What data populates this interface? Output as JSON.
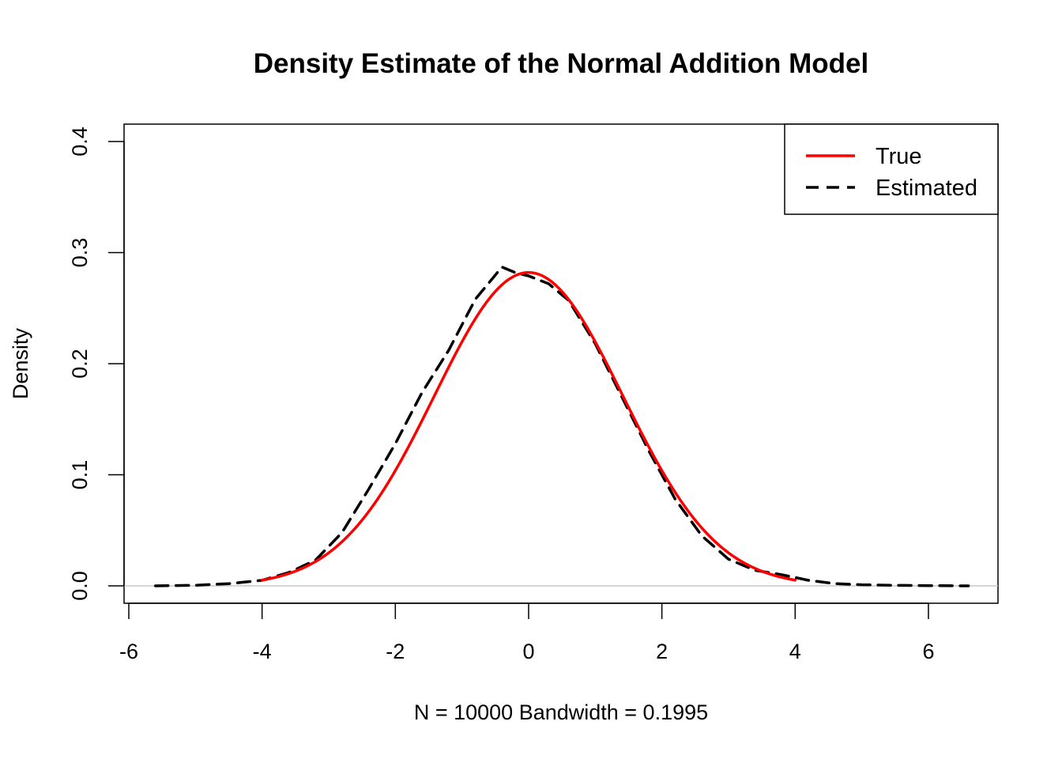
{
  "chart_data": {
    "type": "line",
    "title": "Density Estimate of the Normal Addition Model",
    "xlabel": "N = 10000   Bandwidth = 0.1995",
    "ylabel": "Density",
    "xlim": [
      -6,
      7
    ],
    "ylim": [
      0,
      0.4
    ],
    "x_ticks": [
      -6,
      -4,
      -2,
      0,
      2,
      4,
      6
    ],
    "x_tick_labels": [
      "-6",
      "-4",
      "-2",
      "0",
      "2",
      "4",
      "6"
    ],
    "y_ticks": [
      0.0,
      0.1,
      0.2,
      0.3,
      0.4
    ],
    "y_tick_labels": [
      "0.0",
      "0.1",
      "0.2",
      "0.3",
      "0.4"
    ],
    "grid": false,
    "zero_line": true,
    "legend": {
      "position": "top-right",
      "entries": [
        {
          "label": "True",
          "color": "#ff0000",
          "style": "solid"
        },
        {
          "label": "Estimated",
          "color": "#000000",
          "style": "dashed"
        }
      ]
    },
    "series": [
      {
        "name": "True",
        "color": "#ff0000",
        "style": "solid",
        "distribution": {
          "family": "normal",
          "mean": 0,
          "sd": 1.4142,
          "range": [
            -4,
            4
          ]
        }
      },
      {
        "name": "Estimated",
        "color": "#000000",
        "style": "dashed",
        "x": [
          -5.6,
          -5.0,
          -4.5,
          -4.0,
          -3.6,
          -3.2,
          -2.8,
          -2.4,
          -2.0,
          -1.6,
          -1.2,
          -0.8,
          -0.4,
          -0.2,
          0.0,
          0.3,
          0.6,
          1.0,
          1.4,
          1.8,
          2.2,
          2.6,
          3.0,
          3.4,
          3.8,
          4.2,
          4.6,
          5.0,
          5.5,
          6.0,
          6.6
        ],
        "y": [
          0.0,
          0.0005,
          0.002,
          0.005,
          0.012,
          0.023,
          0.048,
          0.087,
          0.128,
          0.174,
          0.212,
          0.258,
          0.287,
          0.282,
          0.279,
          0.272,
          0.257,
          0.218,
          0.17,
          0.122,
          0.078,
          0.045,
          0.024,
          0.014,
          0.01,
          0.005,
          0.002,
          0.001,
          0.0005,
          0.0002,
          0.0
        ]
      }
    ]
  }
}
